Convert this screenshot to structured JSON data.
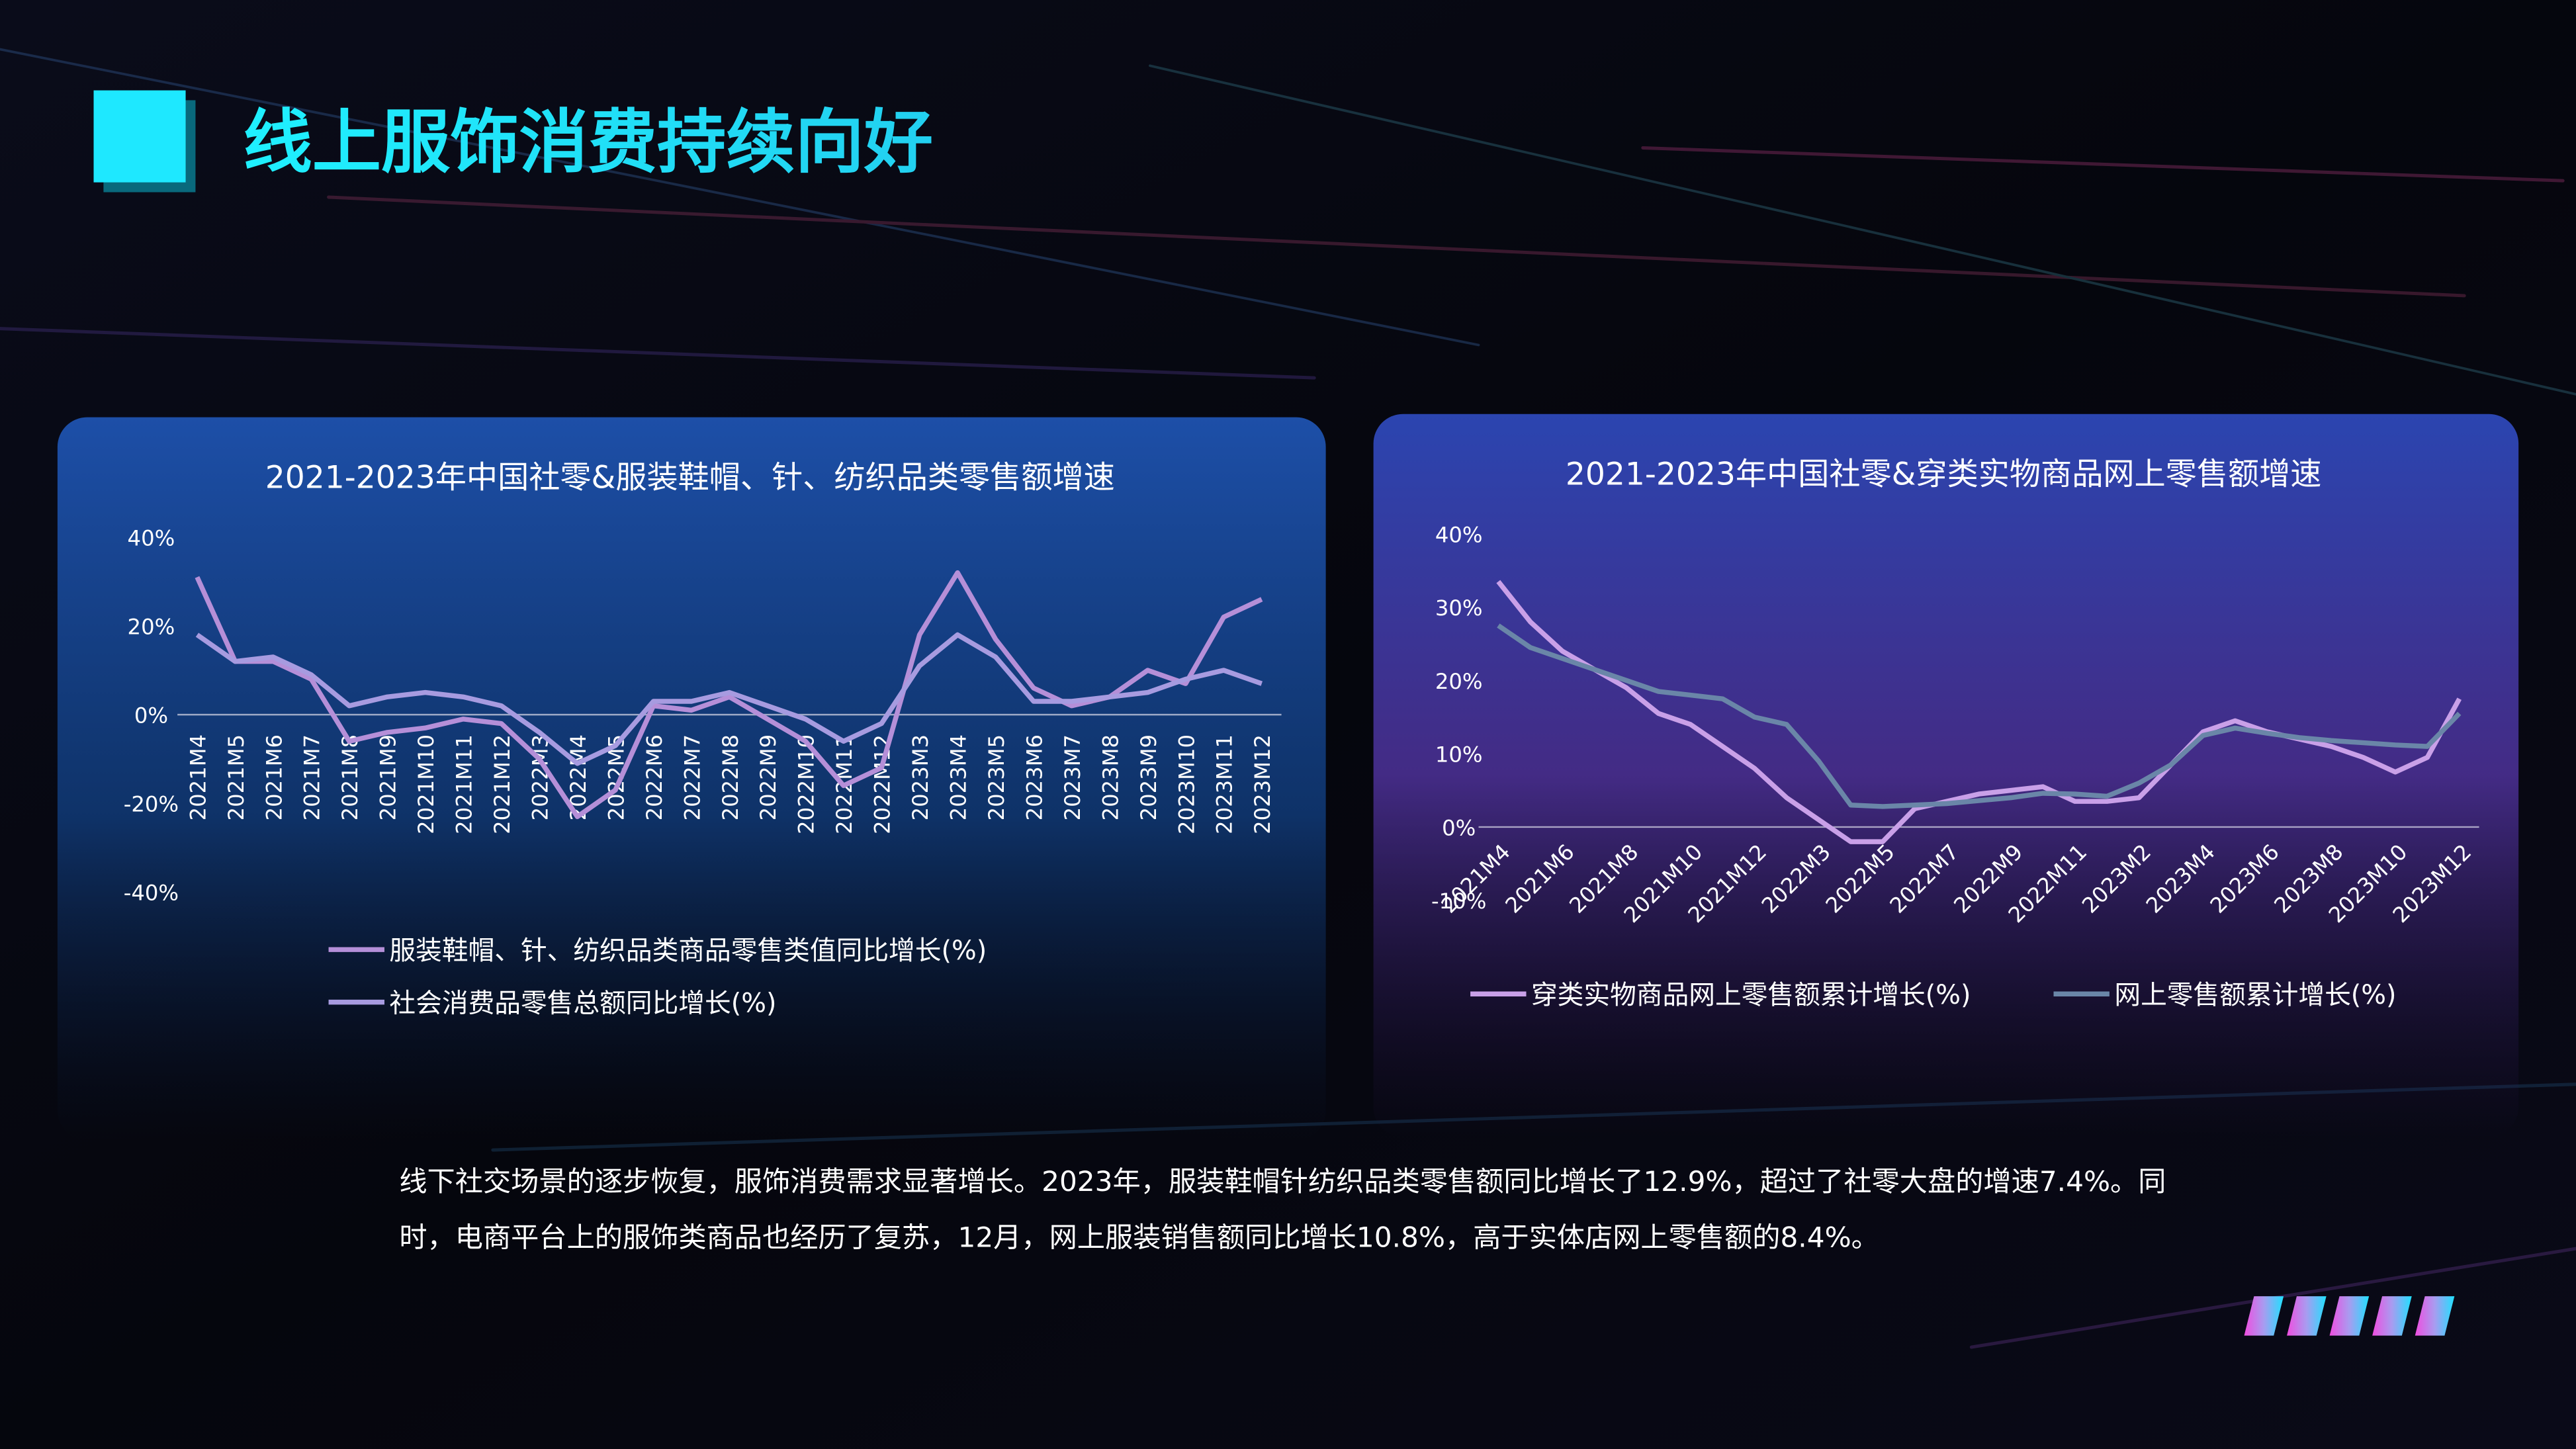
{
  "title": "线上服饰消费持续向好",
  "body": "线下社交场景的逐步恢复，服饰消费需求显著增长。2023年，服装鞋帽针纺织品类零售额同比增长了12.9%，超过了社零大盘的增速7.4%。同时，电商平台上的服饰类商品也经历了复苏，12月，网上服装销售额同比增长10.8%，高于实体店网上零售额的8.4%。",
  "chart_data": [
    {
      "type": "line",
      "title": "2021-2023年中国社零&服装鞋帽、针、纺织品类零售额增速",
      "categories": [
        "2021M4",
        "2021M5",
        "2021M6",
        "2021M7",
        "2021M8",
        "2021M9",
        "2021M10",
        "2021M11",
        "2021M12",
        "2022M3",
        "2022M4",
        "2022M5",
        "2022M6",
        "2022M7",
        "2022M8",
        "2022M9",
        "2022M10",
        "2022M11",
        "2022M12",
        "2023M3",
        "2023M4",
        "2023M5",
        "2023M6",
        "2023M7",
        "2023M8",
        "2023M9",
        "2023M10",
        "2023M11",
        "2023M12"
      ],
      "series": [
        {
          "name": "服装鞋帽、针、纺织品类商品零售类值同比增长(%)",
          "color": "#b58fd8",
          "values": [
            31,
            12,
            12,
            8,
            -6,
            -4,
            -3,
            -1,
            -2,
            -10,
            -23,
            -17,
            2,
            1,
            4,
            -1,
            -6,
            -16,
            -12,
            18,
            32,
            17,
            6,
            2,
            4,
            10,
            7,
            22,
            26
          ]
        },
        {
          "name": "社会消费品零售总额同比增长(%)",
          "color": "#a79be0",
          "values": [
            18,
            12,
            13,
            9,
            2,
            4,
            5,
            4,
            2,
            -4,
            -11,
            -7,
            3,
            3,
            5,
            2,
            -1,
            -6,
            -2,
            11,
            18,
            13,
            3,
            3,
            4,
            5,
            8,
            10,
            7
          ]
        }
      ],
      "ylim": [
        -40,
        40
      ],
      "yticks": [
        {
          "value": -40,
          "label": "-40%"
        },
        {
          "value": -20,
          "label": "-20%"
        },
        {
          "value": 0,
          "label": "0%"
        },
        {
          "value": 20,
          "label": "20%"
        },
        {
          "value": 40,
          "label": "40%"
        }
      ],
      "grid": false,
      "legend": "bottom"
    },
    {
      "type": "line",
      "title": "2021-2023年中国社零&穿类实物商品网上零售额增速",
      "categories": [
        "2021M4",
        null,
        "2021M6",
        null,
        "2021M8",
        null,
        "2021M10",
        null,
        "2021M12",
        null,
        "2022M3",
        null,
        "2022M5",
        null,
        "2022M7",
        null,
        "2022M9",
        null,
        "2022M11",
        null,
        "2023M2",
        null,
        "2023M4",
        null,
        "2023M6",
        null,
        "2023M8",
        null,
        "2023M10",
        null,
        "2023M12"
      ],
      "series": [
        {
          "name": "穿类实物商品网上零售额累计增长(%)",
          "color": "#c9a0e8",
          "values": [
            33.5,
            28,
            24,
            21.5,
            19,
            15.5,
            14,
            11,
            8,
            4,
            1,
            -2,
            -2,
            2.5,
            3.5,
            4.5,
            5,
            5.5,
            3.5,
            3.5,
            4,
            8.5,
            13,
            14.5,
            13,
            12,
            11,
            9.5,
            7.5,
            9.5,
            17.5
          ]
        },
        {
          "name": "网上零售额累计增长(%)",
          "color": "#6a86a8",
          "values": [
            27.5,
            24.5,
            23,
            21.5,
            20,
            18.5,
            18,
            17.5,
            15,
            14,
            9,
            3,
            2.8,
            3,
            3.2,
            3.6,
            4,
            4.6,
            4.5,
            4.2,
            6,
            8.5,
            12.5,
            13.5,
            12.8,
            12.2,
            11.8,
            11.5,
            11.2,
            11,
            15.5
          ]
        }
      ],
      "ylim": [
        -10,
        40
      ],
      "yticks": [
        {
          "value": -10,
          "label": "-10%"
        },
        {
          "value": 0,
          "label": "0%"
        },
        {
          "value": 10,
          "label": "10%"
        },
        {
          "value": 20,
          "label": "20%"
        },
        {
          "value": 30,
          "label": "30%"
        },
        {
          "value": 40,
          "label": "40%"
        }
      ],
      "grid": false,
      "legend": "bottom"
    }
  ]
}
